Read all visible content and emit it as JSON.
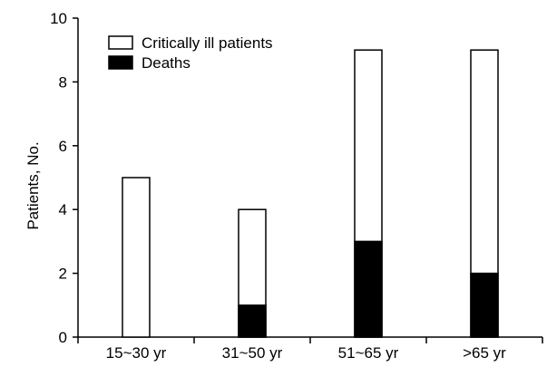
{
  "chart_data": {
    "type": "bar",
    "categories": [
      "15~30 yr",
      "31~50 yr",
      "51~65 yr",
      ">65 yr"
    ],
    "series": [
      {
        "name": "Critically ill patients",
        "values": [
          5,
          4,
          9,
          9
        ]
      },
      {
        "name": "Deaths",
        "values": [
          0,
          1,
          3,
          2
        ]
      }
    ],
    "ylabel": "Patients, No.",
    "xlabel": "",
    "title": "",
    "ylim": [
      0,
      10
    ],
    "yticks": [
      0,
      2,
      4,
      6,
      8,
      10
    ],
    "grid": false,
    "legend_position": "top-left",
    "colors": {
      "critically_ill": "#ffffff",
      "deaths": "#000000",
      "stroke": "#000000"
    }
  }
}
